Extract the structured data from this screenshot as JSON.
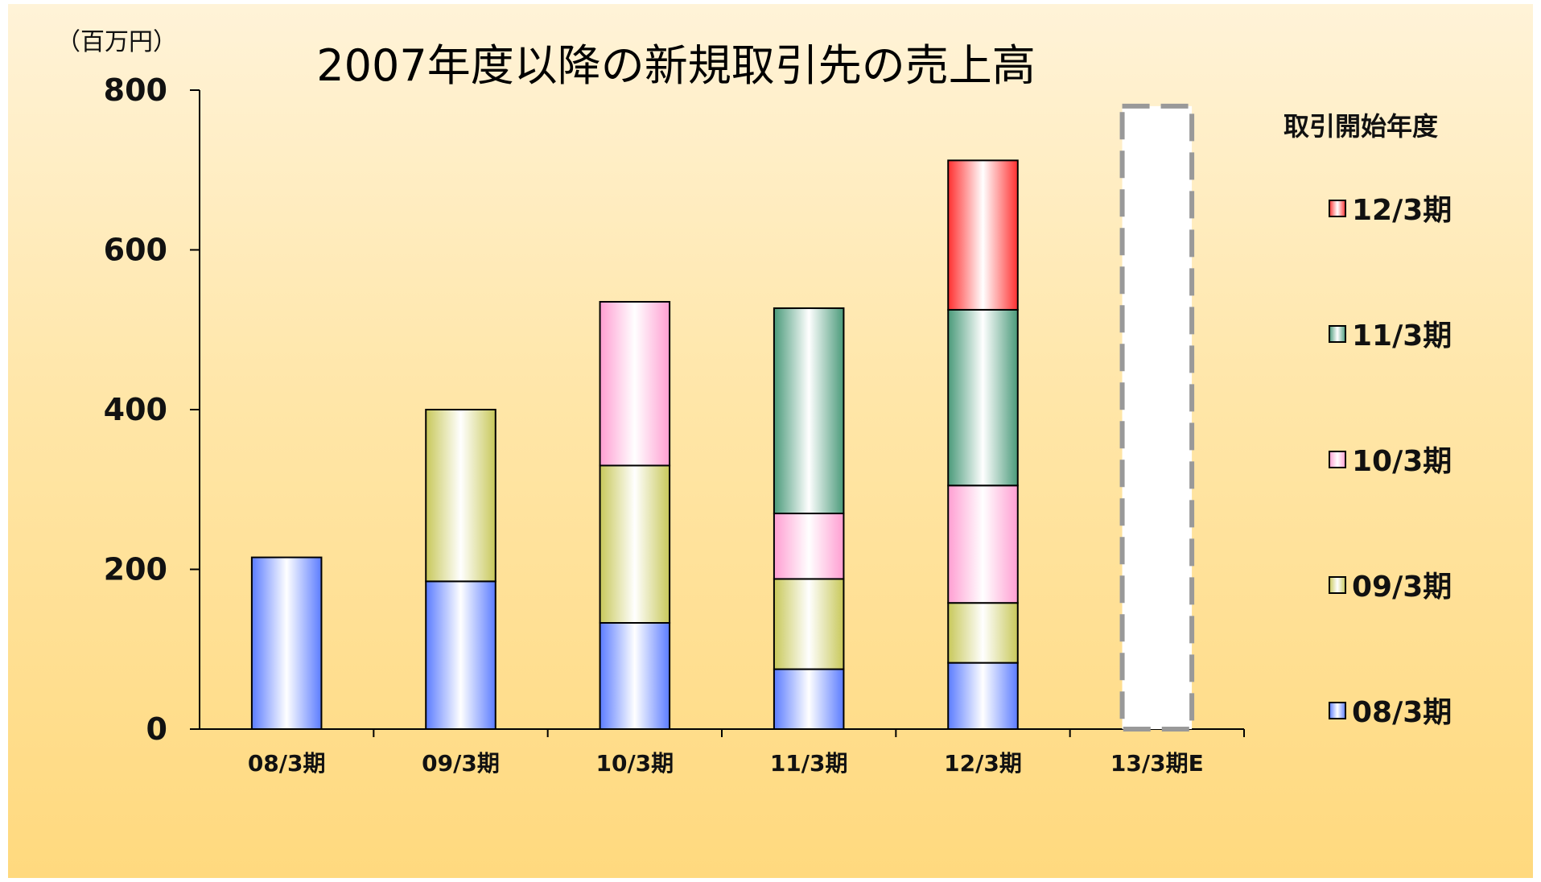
{
  "chart_data": {
    "type": "bar",
    "stacked": true,
    "title": "2007年度以降の新規取引先の売上高",
    "ylabel": "（百万円）",
    "ylim": [
      0,
      800
    ],
    "yticks": [
      0,
      200,
      400,
      600,
      800
    ],
    "categories": [
      "08/3期",
      "09/3期",
      "10/3期",
      "11/3期",
      "12/3期",
      "13/3期E"
    ],
    "legend_title": "取引開始年度",
    "legend_position": "right",
    "series": [
      {
        "name": "08/3期",
        "color": "#5b7cff",
        "values": [
          215,
          185,
          133,
          75,
          83,
          null
        ]
      },
      {
        "name": "09/3期",
        "color": "#c8c85a",
        "values": [
          null,
          215,
          197,
          113,
          75,
          null
        ]
      },
      {
        "name": "10/3期",
        "color": "#ff9ed2",
        "values": [
          null,
          null,
          205,
          82,
          147,
          null
        ]
      },
      {
        "name": "11/3期",
        "color": "#4a9a7a",
        "values": [
          null,
          null,
          null,
          257,
          220,
          null
        ]
      },
      {
        "name": "12/3期",
        "color": "#ff3030",
        "values": [
          null,
          null,
          null,
          null,
          187,
          null
        ]
      }
    ],
    "estimate": {
      "category": "13/3期E",
      "value": 780,
      "style": "dashed-outline"
    }
  }
}
